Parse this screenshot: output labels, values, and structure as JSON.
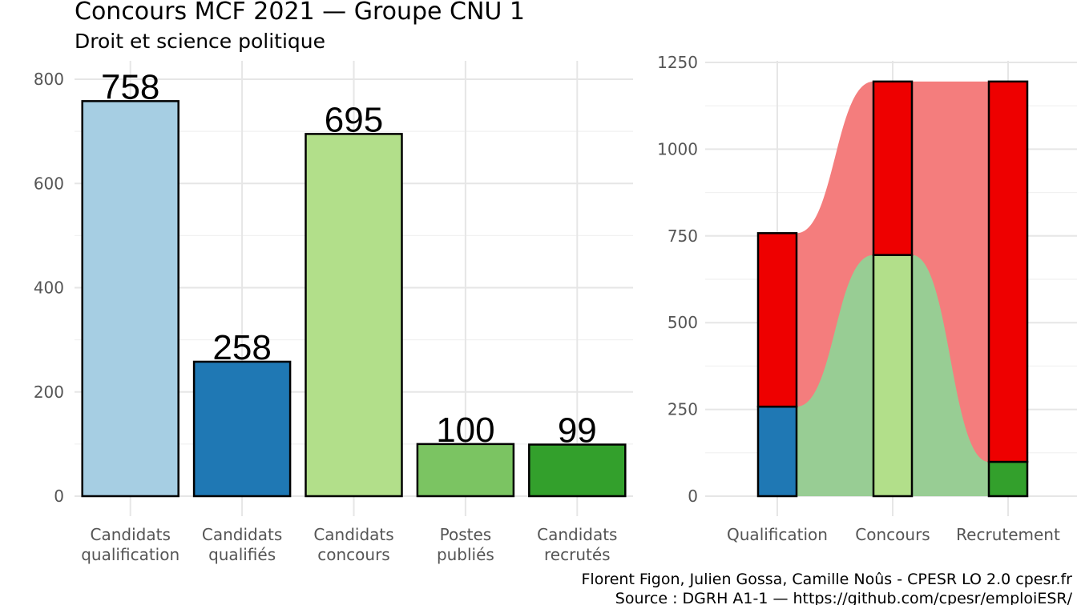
{
  "header": {
    "title": "Concours MCF  2021  —  Groupe CNU 1",
    "subtitle": "Droit et science politique"
  },
  "caption": {
    "line1": "Florent Figon, Julien Gossa, Camille Noûs - CPESR LO 2.0 cpesr.fr",
    "line2": "Source : DGRH A1-1 — https://github.com/cpesr/emploiESR/"
  },
  "chart_data": [
    {
      "type": "bar",
      "categories": [
        [
          "Candidats",
          "qualification"
        ],
        [
          "Candidats",
          "qualifiés"
        ],
        [
          "Candidats",
          "concours"
        ],
        [
          "Postes",
          "publiés"
        ],
        [
          "Candidats",
          "recrutés"
        ]
      ],
      "values": [
        758,
        258,
        695,
        100,
        99
      ],
      "colors": [
        "#a6cee3",
        "#1f78b4",
        "#b2df8a",
        "#7bc462",
        "#33a02c"
      ],
      "value_labels": [
        "758",
        "258",
        "695",
        "100",
        "99"
      ],
      "ylim": [
        0,
        800
      ],
      "yticks": [
        0,
        200,
        400,
        600,
        800
      ],
      "grid": true
    },
    {
      "type": "bar",
      "stacked": true,
      "categories": [
        "Qualification",
        "Concours",
        "Recrutement"
      ],
      "series": [
        {
          "values": [
            258,
            695,
            99
          ],
          "colors": [
            "#1f78b4",
            "#b2df8a",
            "#33a02c"
          ]
        },
        {
          "values": [
            500,
            500,
            1096
          ],
          "color": "#ee0000"
        }
      ],
      "flows": {
        "green_fill": "#98cd94",
        "red_fill": "#f47d7d"
      },
      "ylim": [
        0,
        1250
      ],
      "yticks": [
        0,
        250,
        500,
        750,
        1000,
        1250
      ],
      "grid": true
    }
  ]
}
